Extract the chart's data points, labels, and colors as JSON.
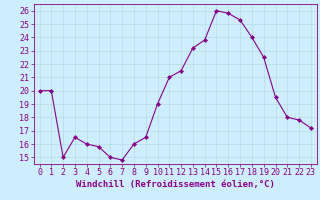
{
  "x": [
    0,
    1,
    2,
    3,
    4,
    5,
    6,
    7,
    8,
    9,
    10,
    11,
    12,
    13,
    14,
    15,
    16,
    17,
    18,
    19,
    20,
    21,
    22,
    23
  ],
  "y": [
    20,
    20,
    15,
    16.5,
    16,
    15.8,
    15,
    14.8,
    16,
    16.5,
    19,
    21,
    21.5,
    23.2,
    23.8,
    26,
    25.8,
    25.3,
    24,
    22.5,
    19.5,
    18,
    17.8,
    17.2
  ],
  "line_color": "#8B008B",
  "marker": "D",
  "marker_size": 2.0,
  "xlabel": "Windchill (Refroidissement éolien,°C)",
  "ylabel_ticks": [
    15,
    16,
    17,
    18,
    19,
    20,
    21,
    22,
    23,
    24,
    25,
    26
  ],
  "xlim": [
    -0.5,
    23.5
  ],
  "ylim": [
    14.5,
    26.5
  ],
  "bg_color": "#cceeff",
  "grid_color": "#b0d8d8",
  "line_width": 0.8,
  "xlabel_fontsize": 6.5,
  "tick_fontsize": 6.0,
  "tick_color": "#8B008B"
}
